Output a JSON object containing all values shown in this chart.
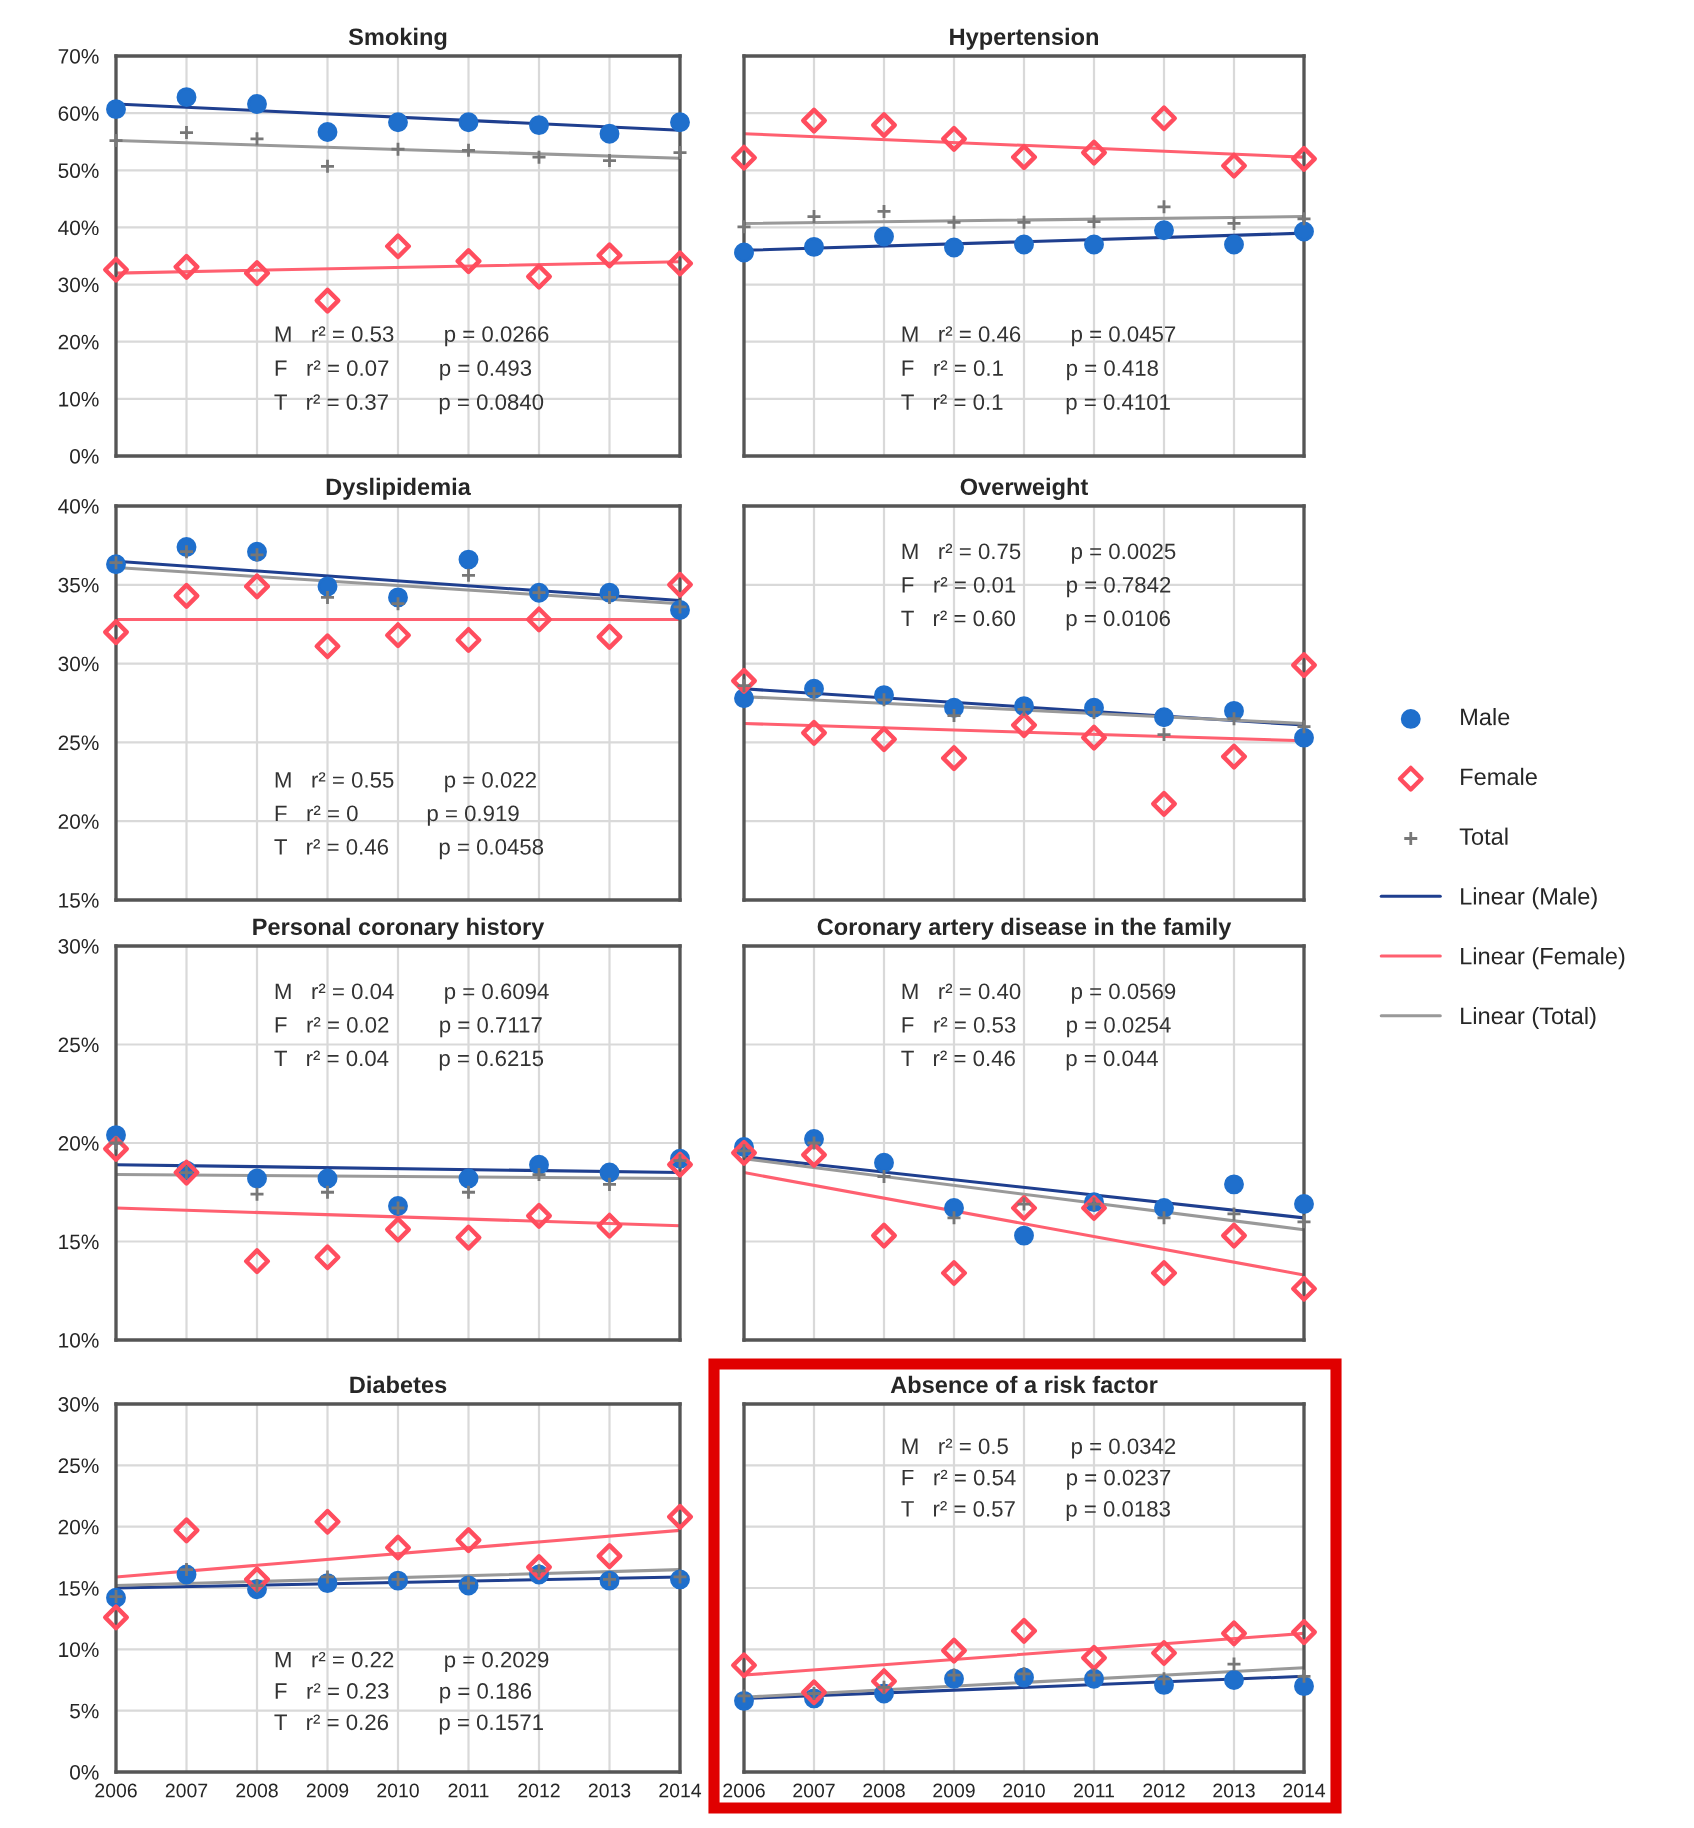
{
  "chart_data": [
    {
      "type": "scatter",
      "title": "Smoking",
      "categories": [
        "2006",
        "2007",
        "2008",
        "2009",
        "2010",
        "2011",
        "2012",
        "2013",
        "2014"
      ],
      "ylim": [
        0,
        70
      ],
      "yticks": [
        {
          "value": 0,
          "label": "0%"
        },
        {
          "value": 10,
          "label": "10%"
        },
        {
          "value": 20,
          "label": "20%"
        },
        {
          "value": 30,
          "label": "30%"
        },
        {
          "value": 40,
          "label": "40%"
        },
        {
          "value": 50,
          "label": "50%"
        },
        {
          "value": 60,
          "label": "60%"
        },
        {
          "value": 70,
          "label": "70%"
        }
      ],
      "grid": true,
      "tick_labels": "y",
      "annotations": [
        "M   r² = 0.53        p = 0.0266",
        "F   r² = 0.07        p = 0.493",
        "T   r² = 0.37        p = 0.0840"
      ],
      "series": [
        {
          "marker": "circle",
          "color": "#1f6fcc",
          "values": [
            60.7,
            62.8,
            61.6,
            56.7,
            58.4,
            58.4,
            57.9,
            56.4,
            58.4
          ]
        },
        {
          "marker": "diamond",
          "color": "#ff4d5e",
          "values": [
            32.6,
            33.1,
            32.0,
            27.2,
            36.7,
            34.1,
            31.4,
            35.1,
            33.7
          ]
        },
        {
          "marker": "cross",
          "color": "#777777",
          "values": [
            55.2,
            56.6,
            55.5,
            50.7,
            53.7,
            53.5,
            52.3,
            51.7,
            53.1
          ]
        },
        {
          "type": "line",
          "color": "#1f3f8f",
          "values": [
            61.6,
            null,
            null,
            null,
            null,
            null,
            null,
            null,
            57.0
          ]
        },
        {
          "type": "line",
          "color": "#ff6070",
          "values": [
            32.0,
            null,
            null,
            null,
            null,
            null,
            null,
            null,
            34.0
          ]
        },
        {
          "type": "line",
          "color": "#999999",
          "values": [
            55.2,
            null,
            null,
            null,
            null,
            null,
            null,
            null,
            52.1
          ]
        }
      ]
    },
    {
      "type": "scatter",
      "title": "Hypertension",
      "categories": [
        "2006",
        "2007",
        "2008",
        "2009",
        "2010",
        "2011",
        "2012",
        "2013",
        "2014"
      ],
      "ylim": [
        0,
        70
      ],
      "yticks": [
        0,
        10,
        20,
        30,
        40,
        50,
        60,
        70
      ],
      "grid": true,
      "tick_labels": false,
      "annotations": [
        "M   r² = 0.46        p = 0.0457",
        "F   r² = 0.1          p = 0.418",
        "T   r² = 0.1          p = 0.4101"
      ],
      "series": [
        {
          "marker": "circle",
          "color": "#1f6fcc",
          "values": [
            35.6,
            36.6,
            38.4,
            36.5,
            37.0,
            37.0,
            39.5,
            37.0,
            39.3
          ]
        },
        {
          "marker": "diamond",
          "color": "#ff4d5e",
          "values": [
            52.2,
            58.7,
            57.9,
            55.5,
            52.3,
            53.1,
            59.1,
            50.8,
            52.0
          ]
        },
        {
          "marker": "cross",
          "color": "#777777",
          "values": [
            40.1,
            41.9,
            42.8,
            40.9,
            40.9,
            41.0,
            43.6,
            40.7,
            41.5
          ]
        },
        {
          "type": "line",
          "color": "#1f3f8f",
          "values": [
            36.0,
            null,
            null,
            null,
            null,
            null,
            null,
            null,
            39.0
          ]
        },
        {
          "type": "line",
          "color": "#ff6070",
          "values": [
            56.4,
            null,
            null,
            null,
            null,
            null,
            null,
            null,
            52.3
          ]
        },
        {
          "type": "line",
          "color": "#999999",
          "values": [
            40.7,
            null,
            null,
            null,
            null,
            null,
            null,
            null,
            41.9
          ]
        }
      ]
    },
    {
      "type": "scatter",
      "title": "Dyslipidemia",
      "categories": [
        "2006",
        "2007",
        "2008",
        "2009",
        "2010",
        "2011",
        "2012",
        "2013",
        "2014"
      ],
      "ylim": [
        15,
        40
      ],
      "yticks": [
        {
          "value": 15,
          "label": "15%"
        },
        {
          "value": 20,
          "label": "20%"
        },
        {
          "value": 25,
          "label": "25%"
        },
        {
          "value": 30,
          "label": "30%"
        },
        {
          "value": 35,
          "label": "35%"
        },
        {
          "value": 40,
          "label": "40%"
        }
      ],
      "grid": true,
      "tick_labels": "y",
      "annotations": [
        "M   r² = 0.55        p = 0.022",
        "F   r² = 0           p = 0.919",
        "T   r² = 0.46        p = 0.0458"
      ],
      "series": [
        {
          "marker": "circle",
          "color": "#1f6fcc",
          "values": [
            36.3,
            37.4,
            37.1,
            34.9,
            34.2,
            36.6,
            34.5,
            34.5,
            33.4
          ]
        },
        {
          "marker": "diamond",
          "color": "#ff4d5e",
          "values": [
            32.0,
            34.3,
            34.9,
            31.1,
            31.8,
            31.5,
            32.8,
            31.7,
            35.0
          ]
        },
        {
          "marker": "cross",
          "color": "#777777",
          "values": [
            36.4,
            37.1,
            36.9,
            34.2,
            33.8,
            35.6,
            34.5,
            34.2,
            33.6
          ]
        },
        {
          "type": "line",
          "color": "#1f3f8f",
          "values": [
            36.5,
            null,
            null,
            null,
            null,
            null,
            null,
            null,
            34.0
          ]
        },
        {
          "type": "line",
          "color": "#ff6070",
          "values": [
            32.8,
            null,
            null,
            null,
            null,
            null,
            null,
            null,
            32.8
          ]
        },
        {
          "type": "line",
          "color": "#999999",
          "values": [
            36.1,
            null,
            null,
            null,
            null,
            null,
            null,
            null,
            33.8
          ]
        }
      ]
    },
    {
      "type": "scatter",
      "title": "Overweight",
      "categories": [
        "2006",
        "2007",
        "2008",
        "2009",
        "2010",
        "2011",
        "2012",
        "2013",
        "2014"
      ],
      "ylim": [
        15,
        40
      ],
      "yticks": [
        15,
        20,
        25,
        30,
        35,
        40
      ],
      "grid": true,
      "tick_labels": false,
      "legend": "right",
      "annotations": [
        "M   r² = 0.75        p = 0.0025",
        "F   r² = 0.01        p = 0.7842",
        "T   r² = 0.60        p = 0.0106"
      ],
      "series": [
        {
          "marker": "circle",
          "name": "Male",
          "color": "#1f6fcc",
          "values": [
            27.8,
            28.4,
            28.0,
            27.2,
            27.3,
            27.2,
            26.6,
            27.0,
            25.3
          ]
        },
        {
          "marker": "diamond",
          "name": "Female",
          "color": "#ff4d5e",
          "values": [
            28.9,
            25.6,
            25.2,
            24.0,
            26.1,
            25.3,
            21.1,
            24.1,
            29.9
          ]
        },
        {
          "marker": "cross",
          "name": "Total",
          "color": "#777777",
          "values": [
            28.6,
            28.1,
            27.7,
            26.7,
            27.1,
            26.9,
            25.5,
            26.5,
            26.0
          ]
        },
        {
          "type": "line",
          "name": "Linear (Male)",
          "color": "#1f3f8f",
          "values": [
            28.4,
            null,
            null,
            null,
            null,
            null,
            null,
            null,
            26.1
          ]
        },
        {
          "type": "line",
          "name": "Linear (Female)",
          "color": "#ff6070",
          "values": [
            26.2,
            null,
            null,
            null,
            null,
            null,
            null,
            null,
            25.1
          ]
        },
        {
          "type": "line",
          "name": "Linear (Total)",
          "color": "#999999",
          "values": [
            27.9,
            null,
            null,
            null,
            null,
            null,
            null,
            null,
            26.2
          ]
        }
      ]
    },
    {
      "type": "scatter",
      "title": "Personal coronary history",
      "categories": [
        "2006",
        "2007",
        "2008",
        "2009",
        "2010",
        "2011",
        "2012",
        "2013",
        "2014"
      ],
      "ylim": [
        10,
        30
      ],
      "yticks": [
        {
          "value": 10,
          "label": "10%"
        },
        {
          "value": 15,
          "label": "15%"
        },
        {
          "value": 20,
          "label": "20%"
        },
        {
          "value": 25,
          "label": "25%"
        },
        {
          "value": 30,
          "label": "30%"
        }
      ],
      "grid": true,
      "tick_labels": "y",
      "annotations": [
        "M   r² = 0.04        p = 0.6094",
        "F   r² = 0.02        p = 0.7117",
        "T   r² = 0.04        p = 0.6215"
      ],
      "series": [
        {
          "marker": "circle",
          "color": "#1f6fcc",
          "values": [
            20.4,
            18.6,
            18.2,
            18.2,
            16.8,
            18.2,
            18.9,
            18.5,
            19.2
          ]
        },
        {
          "marker": "diamond",
          "color": "#ff4d5e",
          "values": [
            19.7,
            18.5,
            14.0,
            14.2,
            15.6,
            15.2,
            16.3,
            15.8,
            18.9
          ]
        },
        {
          "marker": "cross",
          "color": "#777777",
          "values": [
            20.0,
            18.5,
            17.4,
            17.5,
            16.7,
            17.5,
            18.4,
            17.9,
            19.1
          ]
        },
        {
          "type": "line",
          "color": "#1f3f8f",
          "values": [
            18.9,
            null,
            null,
            null,
            null,
            null,
            null,
            null,
            18.5
          ]
        },
        {
          "type": "line",
          "color": "#ff6070",
          "values": [
            16.7,
            null,
            null,
            null,
            null,
            null,
            null,
            null,
            15.8
          ]
        },
        {
          "type": "line",
          "color": "#999999",
          "values": [
            18.4,
            null,
            null,
            null,
            null,
            null,
            null,
            null,
            18.2
          ]
        }
      ]
    },
    {
      "type": "scatter",
      "title": "Coronary artery disease in the family",
      "categories": [
        "2006",
        "2007",
        "2008",
        "2009",
        "2010",
        "2011",
        "2012",
        "2013",
        "2014"
      ],
      "ylim": [
        10,
        30
      ],
      "yticks": [
        10,
        15,
        20,
        25,
        30
      ],
      "grid": true,
      "tick_labels": false,
      "annotations": [
        "M   r² = 0.40        p = 0.0569",
        "F   r² = 0.53        p = 0.0254",
        "T   r² = 0.46        p = 0.044"
      ],
      "series": [
        {
          "marker": "circle",
          "color": "#1f6fcc",
          "values": [
            19.8,
            20.2,
            19.0,
            16.7,
            15.3,
            17.0,
            16.7,
            17.9,
            16.9
          ]
        },
        {
          "marker": "diamond",
          "color": "#ff4d5e",
          "values": [
            19.5,
            19.4,
            15.3,
            13.4,
            16.7,
            16.7,
            13.4,
            15.3,
            12.6
          ]
        },
        {
          "marker": "cross",
          "color": "#777777",
          "values": [
            19.6,
            20.0,
            18.3,
            16.2,
            16.9,
            16.9,
            16.2,
            16.4,
            16.0
          ]
        },
        {
          "type": "line",
          "color": "#1f3f8f",
          "values": [
            19.3,
            null,
            null,
            null,
            null,
            null,
            null,
            null,
            16.2
          ]
        },
        {
          "type": "line",
          "color": "#ff6070",
          "values": [
            18.5,
            null,
            null,
            null,
            null,
            null,
            null,
            null,
            13.3
          ]
        },
        {
          "type": "line",
          "color": "#999999",
          "values": [
            19.2,
            null,
            null,
            null,
            null,
            null,
            null,
            null,
            15.6
          ]
        }
      ]
    },
    {
      "type": "scatter",
      "title": "Diabetes",
      "categories": [
        "2006",
        "2007",
        "2008",
        "2009",
        "2010",
        "2011",
        "2012",
        "2013",
        "2014"
      ],
      "ylim": [
        0,
        30
      ],
      "yticks": [
        {
          "value": 0,
          "label": "0%"
        },
        {
          "value": 5,
          "label": "5%"
        },
        {
          "value": 10,
          "label": "10%"
        },
        {
          "value": 15,
          "label": "15%"
        },
        {
          "value": 20,
          "label": "20%"
        },
        {
          "value": 25,
          "label": "25%"
        },
        {
          "value": 30,
          "label": "30%"
        }
      ],
      "grid": true,
      "annotations": [
        "M   r² = 0.22        p = 0.2029",
        "F   r² = 0.23        p = 0.186",
        "T   r² = 0.26        p = 0.1571"
      ],
      "series": [
        {
          "marker": "circle",
          "color": "#1f6fcc",
          "values": [
            14.2,
            16.1,
            14.9,
            15.4,
            15.6,
            15.2,
            16.1,
            15.6,
            15.7
          ]
        },
        {
          "marker": "diamond",
          "color": "#ff4d5e",
          "values": [
            12.6,
            19.7,
            15.7,
            20.4,
            18.3,
            18.9,
            16.7,
            17.6,
            20.8
          ]
        },
        {
          "marker": "cross",
          "color": "#777777",
          "values": [
            14.3,
            16.5,
            15.2,
            15.9,
            15.7,
            15.4,
            16.4,
            15.7,
            15.9
          ]
        },
        {
          "type": "line",
          "color": "#1f3f8f",
          "values": [
            15.0,
            null,
            null,
            null,
            null,
            null,
            null,
            null,
            15.9
          ]
        },
        {
          "type": "line",
          "color": "#ff6070",
          "values": [
            15.9,
            null,
            null,
            null,
            null,
            null,
            null,
            null,
            19.7
          ]
        },
        {
          "type": "line",
          "color": "#999999",
          "values": [
            15.2,
            null,
            null,
            null,
            null,
            null,
            null,
            null,
            16.5
          ]
        }
      ]
    },
    {
      "type": "scatter",
      "title": "Absence of a risk factor",
      "categories": [
        "2006",
        "2007",
        "2008",
        "2009",
        "2010",
        "2011",
        "2012",
        "2013",
        "2014"
      ],
      "ylim": [
        0,
        30
      ],
      "yticks": [
        0,
        5,
        10,
        15,
        20,
        25,
        30
      ],
      "grid": true,
      "tick_labels": "x",
      "annotations": [
        "M   r² = 0.5          p = 0.0342",
        "F   r² = 0.54        p = 0.0237",
        "T   r² = 0.57        p = 0.0183"
      ],
      "series": [
        {
          "marker": "circle",
          "color": "#1f6fcc",
          "values": [
            5.8,
            6.0,
            6.4,
            7.6,
            7.7,
            7.6,
            7.1,
            7.5,
            7.0
          ]
        },
        {
          "marker": "diamond",
          "color": "#ff4d5e",
          "values": [
            8.7,
            6.5,
            7.4,
            9.9,
            11.5,
            9.3,
            9.7,
            11.3,
            11.4
          ]
        },
        {
          "marker": "cross",
          "color": "#777777",
          "values": [
            6.2,
            6.4,
            6.9,
            7.9,
            8.0,
            7.9,
            7.6,
            8.8,
            7.8
          ]
        },
        {
          "type": "line",
          "color": "#1f3f8f",
          "values": [
            6.0,
            null,
            null,
            null,
            null,
            null,
            null,
            null,
            7.8
          ]
        },
        {
          "type": "line",
          "color": "#ff6070",
          "values": [
            7.9,
            null,
            null,
            null,
            null,
            null,
            null,
            null,
            11.3
          ]
        },
        {
          "type": "line",
          "color": "#999999",
          "values": [
            6.1,
            null,
            null,
            null,
            null,
            null,
            null,
            null,
            8.5
          ]
        }
      ]
    }
  ]
}
